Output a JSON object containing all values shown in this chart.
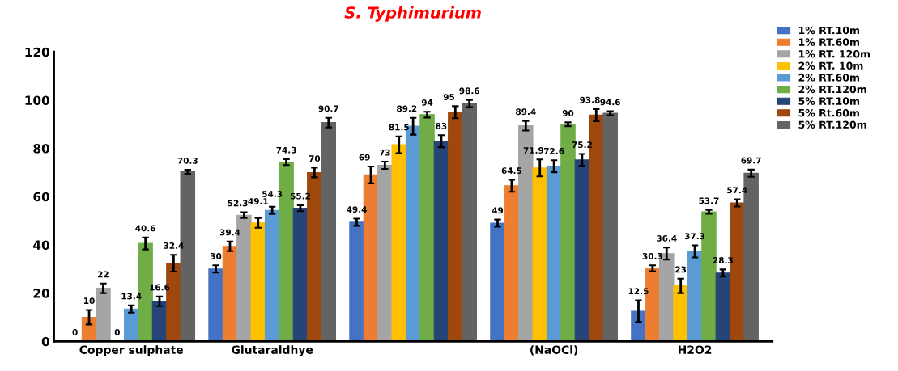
{
  "chart_data": {
    "type": "bar",
    "title": "S. Typhimurium",
    "categories": [
      "Copper sulphate",
      "Glutaraldhye",
      null,
      "(NaOCl)",
      "H2O2"
    ],
    "series": [
      {
        "name": "1% RT.10m",
        "color": "#4472c4",
        "values": [
          0,
          30,
          49.4,
          49,
          12.5
        ],
        "errors": [
          null,
          1.5,
          1.5,
          1.5,
          4.5
        ]
      },
      {
        "name": "1% RT.60m",
        "color": "#ed7d31",
        "values": [
          10,
          39.4,
          69,
          64.5,
          30.3
        ],
        "errors": [
          3,
          2,
          3.5,
          2.5,
          1.2
        ]
      },
      {
        "name": "1% RT. 120m",
        "color": "#a5a5a5",
        "values": [
          22,
          52.3,
          73,
          89.4,
          36.4
        ],
        "errors": [
          2,
          1.2,
          1.5,
          2,
          2.5
        ]
      },
      {
        "name": "2% RT. 10m",
        "color": "#ffc000",
        "values": [
          0,
          49.1,
          81.5,
          71.9,
          23
        ],
        "errors": [
          null,
          2,
          3.5,
          3.5,
          3
        ]
      },
      {
        "name": "2% RT.60m",
        "color": "#5b9bd5",
        "values": [
          13.4,
          54.3,
          89.2,
          72.6,
          37.3
        ],
        "errors": [
          1.5,
          1.5,
          3.5,
          2.5,
          2.5
        ]
      },
      {
        "name": "2% RT.120m",
        "color": "#70ad47",
        "values": [
          40.6,
          74.3,
          94,
          90,
          53.7
        ],
        "errors": [
          2.5,
          1.2,
          1.2,
          0.8,
          0.8
        ]
      },
      {
        "name": "5% RT.10m",
        "color": "#264478",
        "values": [
          16.6,
          55.2,
          83,
          75.2,
          28.3
        ],
        "errors": [
          2,
          1.2,
          2.5,
          2.5,
          1.5
        ]
      },
      {
        "name": "5% Rt.60m",
        "color": "#9e480e",
        "values": [
          32.4,
          70,
          95,
          93.8,
          57.4
        ],
        "errors": [
          3.5,
          2,
          2.5,
          2.5,
          1.5
        ]
      },
      {
        "name": "5% RT.120m",
        "color": "#636363",
        "values": [
          70.3,
          90.7,
          98.6,
          94.6,
          69.7
        ],
        "errors": [
          0.8,
          2,
          1.5,
          0.8,
          1.5
        ]
      }
    ],
    "ylim": [
      0,
      120
    ],
    "yticks": [
      0,
      20,
      40,
      60,
      80,
      100,
      120
    ],
    "data_labels": true,
    "grid": false,
    "legend": "top right"
  }
}
